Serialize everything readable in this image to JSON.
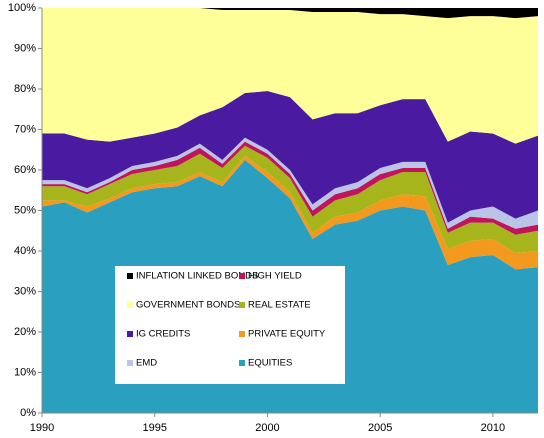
{
  "chart_data": {
    "type": "stacked-area",
    "x": [
      1990,
      1991,
      1992,
      1993,
      1994,
      1995,
      1996,
      1997,
      1998,
      1999,
      2000,
      2001,
      2002,
      2003,
      2004,
      2005,
      2006,
      2007,
      2008,
      2009,
      2010,
      2011,
      2012
    ],
    "xlim": [
      1990,
      2012
    ],
    "xticks": [
      1990,
      1995,
      2000,
      2005,
      2010
    ],
    "ylim": [
      0,
      100
    ],
    "yticks": [
      {
        "value": 0,
        "label": "0%"
      },
      {
        "value": 10,
        "label": "10%"
      },
      {
        "value": 20,
        "label": "20%"
      },
      {
        "value": 30,
        "label": "30%"
      },
      {
        "value": 40,
        "label": "40%"
      },
      {
        "value": 50,
        "label": "50%"
      },
      {
        "value": 60,
        "label": "60%"
      },
      {
        "value": 70,
        "label": "70%"
      },
      {
        "value": 80,
        "label": "80%"
      },
      {
        "value": 90,
        "label": "90%"
      },
      {
        "value": 100,
        "label": "100%"
      }
    ],
    "series": [
      {
        "name": "EQUITIES",
        "color": "#2a9fc0",
        "values": [
          51,
          52,
          49.5,
          52,
          54.5,
          55.5,
          56,
          58.5,
          56,
          62.5,
          58,
          53,
          43,
          46.5,
          47.5,
          50,
          51,
          50,
          36.5,
          38.5,
          39,
          35.5,
          36
        ]
      },
      {
        "name": "PRIVATE EQUITY",
        "color": "#f39a1e",
        "values": [
          1.5,
          0.5,
          1.5,
          1,
          1,
          1,
          1,
          1,
          1,
          1,
          1.5,
          1.5,
          1.5,
          2,
          2,
          2.5,
          3,
          3.5,
          4,
          4,
          4,
          4,
          4
        ]
      },
      {
        "name": "REAL ESTATE",
        "color": "#a7b51c",
        "values": [
          3.5,
          3.5,
          3,
          3.5,
          3.5,
          3.5,
          4,
          4.5,
          3.5,
          2.5,
          3.5,
          3.5,
          4,
          4,
          4.5,
          5,
          5.5,
          6,
          4,
          4.5,
          4,
          4.5,
          5
        ]
      },
      {
        "name": "HIGH YIELD",
        "color": "#c0145c",
        "values": [
          0.5,
          0.5,
          0.5,
          0.5,
          1,
          1,
          1.5,
          1.5,
          1,
          1,
          1,
          1,
          1.5,
          1.5,
          1.5,
          1.5,
          1,
          1,
          1,
          1.5,
          1,
          1.5,
          1.5
        ]
      },
      {
        "name": "EMD",
        "color": "#b9c4e6",
        "values": [
          1,
          1,
          1,
          1,
          1,
          1,
          1,
          1,
          1,
          1,
          1,
          1,
          1.5,
          1.5,
          1.5,
          1.5,
          1.5,
          1.5,
          1.5,
          1.5,
          3,
          2.5,
          3.5
        ]
      },
      {
        "name": "IG CREDITS",
        "color": "#4a1aa0",
        "values": [
          11.5,
          11.5,
          12,
          9,
          7,
          7,
          7,
          7,
          13,
          11,
          14.5,
          18,
          21,
          18.5,
          17,
          15.5,
          15.5,
          15.5,
          20,
          19.5,
          18,
          18.5,
          18.5
        ]
      },
      {
        "name": "GOVERNMENT BONDS",
        "color": "#ffff99",
        "values": [
          31,
          31,
          32.5,
          33,
          32,
          31,
          29.5,
          26.5,
          24,
          20.5,
          20,
          21.5,
          26.5,
          25,
          25,
          22.5,
          21,
          20.5,
          30.5,
          28.5,
          29,
          31,
          29.5
        ]
      },
      {
        "name": "INFLATION LINKED BONDS",
        "color": "#000000",
        "values": [
          0,
          0,
          0,
          0,
          0,
          0,
          0,
          0,
          0.5,
          0.5,
          0.5,
          0.5,
          1,
          1,
          1,
          1.5,
          1.5,
          2,
          2.5,
          2,
          2,
          2.5,
          2
        ]
      }
    ]
  }
}
